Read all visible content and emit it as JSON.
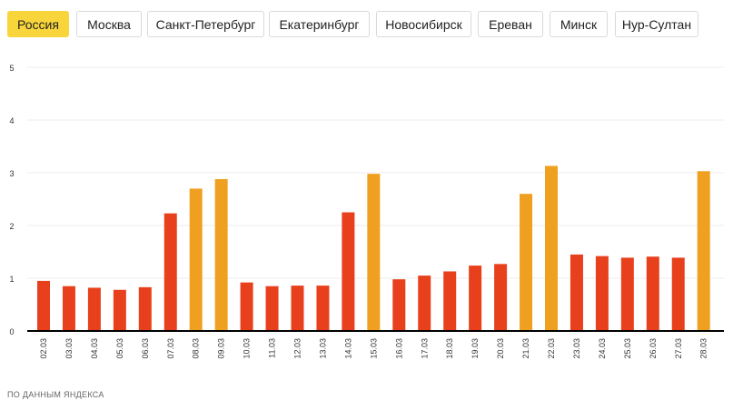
{
  "tabs": [
    {
      "label": "Россия",
      "active": true
    },
    {
      "label": "Москва",
      "active": false
    },
    {
      "label": "Санкт-Петербург",
      "active": false
    },
    {
      "label": "Екатеринбург",
      "active": false
    },
    {
      "label": "Новосибирск",
      "active": false
    },
    {
      "label": "Ереван",
      "active": false
    },
    {
      "label": "Минск",
      "active": false
    },
    {
      "label": "Нур-Султан",
      "active": false
    }
  ],
  "footer": "ПО ДАННЫМ ЯНДЕКСА",
  "colors": {
    "weekday": "#e8401c",
    "weekend": "#f0a020",
    "active_tab": "#f8d53a"
  },
  "chart_data": {
    "type": "bar",
    "title": "",
    "xlabel": "",
    "ylabel": "",
    "ylim": [
      0,
      5
    ],
    "yticks": [
      0,
      1,
      2,
      3,
      4,
      5
    ],
    "grid": true,
    "categories": [
      "02.03",
      "03.03",
      "04.03",
      "05.03",
      "06.03",
      "07.03",
      "08.03",
      "09.03",
      "10.03",
      "11.03",
      "12.03",
      "13.03",
      "14.03",
      "15.03",
      "16.03",
      "17.03",
      "18.03",
      "19.03",
      "20.03",
      "21.03",
      "22.03",
      "23.03",
      "24.03",
      "25.03",
      "26.03",
      "27.03",
      "28.03"
    ],
    "values": [
      0.95,
      0.85,
      0.82,
      0.78,
      0.83,
      2.23,
      2.7,
      2.88,
      0.92,
      0.85,
      0.86,
      0.86,
      2.25,
      2.98,
      0.98,
      1.05,
      1.13,
      1.24,
      1.27,
      2.6,
      3.13,
      1.45,
      1.42,
      1.39,
      1.41,
      1.39,
      3.03
    ],
    "bar_color_keys": [
      "weekday",
      "weekday",
      "weekday",
      "weekday",
      "weekday",
      "weekday",
      "weekend",
      "weekend",
      "weekday",
      "weekday",
      "weekday",
      "weekday",
      "weekday",
      "weekend",
      "weekday",
      "weekday",
      "weekday",
      "weekday",
      "weekday",
      "weekend",
      "weekend",
      "weekday",
      "weekday",
      "weekday",
      "weekday",
      "weekday",
      "weekend"
    ]
  }
}
